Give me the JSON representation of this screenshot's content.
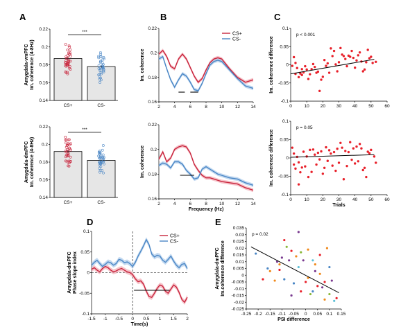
{
  "panel_labels": {
    "A": "A",
    "B": "B",
    "C": "C",
    "D": "D",
    "E": "E"
  },
  "colors": {
    "cs_plus": "#c8243c",
    "cs_minus": "#4a86c5",
    "cs_plus_band": "#f2a9b4",
    "cs_minus_band": "#a9c9ea",
    "bar_fill": "#e6e6e6",
    "scatter": "#e8202a"
  },
  "chart_data": [
    {
      "id": "A1",
      "type": "bar",
      "ylabel_line1": "Amygdala-vmPFC",
      "ylabel_line2": "Im. coherence (4-8Hz)",
      "categories": [
        "CS+",
        "CS-"
      ],
      "values": [
        0.187,
        0.178
      ],
      "sem": [
        0.001,
        0.001
      ],
      "ylim": [
        0.14,
        0.22
      ],
      "yticks": [
        "0.14",
        "0.16",
        "0.18",
        "0.2",
        "0.22"
      ],
      "significance": "***",
      "grid": false
    },
    {
      "id": "A2",
      "type": "bar",
      "ylabel_line1": "Amygdala-dmPFC",
      "ylabel_line2": "Im. coherence (4-8Hz)",
      "categories": [
        "CS+",
        "CS-"
      ],
      "values": [
        0.192,
        0.182
      ],
      "sem": [
        0.0012,
        0.0008
      ],
      "ylim": [
        0.14,
        0.22
      ],
      "yticks": [
        "0.14",
        "0.16",
        "0.18",
        "0.2",
        "0.22"
      ],
      "significance": "***",
      "grid": false
    },
    {
      "id": "B1",
      "type": "line",
      "ylabel": "Im. coherence",
      "legend": [
        "CS+",
        "CS-"
      ],
      "legend_position": "top-right",
      "x": [
        2,
        2.5,
        3,
        3.5,
        4,
        4.5,
        5,
        5.5,
        6,
        6.5,
        7,
        7.5,
        8,
        8.5,
        9,
        9.5,
        10,
        11,
        12,
        13,
        14
      ],
      "series": [
        {
          "name": "CS+",
          "values": [
            0.199,
            0.202,
            0.197,
            0.189,
            0.187,
            0.195,
            0.199,
            0.195,
            0.188,
            0.181,
            0.176,
            0.179,
            0.186,
            0.192,
            0.195,
            0.196,
            0.195,
            0.187,
            0.18,
            0.176,
            0.178
          ]
        },
        {
          "name": "CS-",
          "values": [
            0.195,
            0.197,
            0.187,
            0.178,
            0.172,
            0.178,
            0.183,
            0.181,
            0.176,
            0.17,
            0.169,
            0.175,
            0.183,
            0.19,
            0.193,
            0.194,
            0.193,
            0.186,
            0.179,
            0.173,
            0.171
          ]
        }
      ],
      "xlim": [
        2,
        14
      ],
      "ylim": [
        0.16,
        0.22
      ],
      "xticks": [
        "2",
        "4",
        "6",
        "8",
        "10",
        "12",
        "14"
      ],
      "yticks": [
        "0.16",
        "0.18",
        "0.2",
        "0.22"
      ],
      "sig_bars": [
        [
          4.5,
          5.3
        ],
        [
          6.0,
          7.0
        ]
      ]
    },
    {
      "id": "B2",
      "type": "line",
      "ylabel": "Im. coherence",
      "xlabel": "Frequency (Hz)",
      "x": [
        2,
        2.5,
        3,
        3.5,
        4,
        4.5,
        5,
        5.5,
        6,
        6.5,
        7,
        7.5,
        8,
        8.5,
        9,
        9.5,
        10,
        11,
        12,
        13,
        14
      ],
      "series": [
        {
          "name": "CS+",
          "values": [
            0.192,
            0.198,
            0.19,
            0.193,
            0.2,
            0.202,
            0.203,
            0.202,
            0.197,
            0.188,
            0.183,
            0.179,
            0.177,
            0.177,
            0.176,
            0.175,
            0.174,
            0.173,
            0.172,
            0.169,
            0.167
          ]
        },
        {
          "name": "CS-",
          "values": [
            0.187,
            0.189,
            0.188,
            0.185,
            0.19,
            0.19,
            0.188,
            0.183,
            0.18,
            0.176,
            0.177,
            0.184,
            0.186,
            0.184,
            0.182,
            0.18,
            0.179,
            0.177,
            0.176,
            0.173,
            0.171
          ]
        }
      ],
      "xlim": [
        2,
        14
      ],
      "ylim": [
        0.16,
        0.22
      ],
      "xticks": [
        "2",
        "4",
        "6",
        "8",
        "10",
        "12",
        "14"
      ],
      "yticks": [
        "0.16",
        "0.18",
        "0.2",
        "0.22"
      ],
      "sig_bars": [
        [
          4.7,
          6.5
        ]
      ]
    },
    {
      "id": "C1",
      "type": "scatter",
      "ylabel": "Im. coherence difference",
      "annotation": "p < 0.001",
      "points": [
        [
          1,
          -0.003
        ],
        [
          2,
          0.021
        ],
        [
          3,
          0.005
        ],
        [
          3,
          -0.025
        ],
        [
          4,
          -0.009
        ],
        [
          5,
          -0.034
        ],
        [
          6,
          -0.024
        ],
        [
          7,
          -0.028
        ],
        [
          7,
          -0.012
        ],
        [
          8,
          -0.021
        ],
        [
          9,
          -0.004
        ],
        [
          10,
          -0.013
        ],
        [
          11,
          -0.039
        ],
        [
          12,
          -0.026
        ],
        [
          13,
          -0.012
        ],
        [
          14,
          0.002
        ],
        [
          15,
          -0.006
        ],
        [
          16,
          -0.022
        ],
        [
          17,
          -0.019
        ],
        [
          18,
          -0.072
        ],
        [
          19,
          -0.041
        ],
        [
          20,
          -0.033
        ],
        [
          21,
          0.013
        ],
        [
          22,
          -0.003
        ],
        [
          23,
          0.004
        ],
        [
          24,
          -0.022
        ],
        [
          25,
          0.045
        ],
        [
          26,
          0.024
        ],
        [
          27,
          0.038
        ],
        [
          28,
          0.001
        ],
        [
          29,
          -0.018
        ],
        [
          30,
          0.007
        ],
        [
          31,
          0.046
        ],
        [
          32,
          0.028
        ],
        [
          33,
          0.024
        ],
        [
          34,
          0.016
        ],
        [
          35,
          -0.004
        ],
        [
          36,
          0.025
        ],
        [
          37,
          0.022
        ],
        [
          38,
          0.038
        ],
        [
          39,
          0.019
        ],
        [
          40,
          -0.008
        ],
        [
          41,
          0.012
        ],
        [
          42,
          0.026
        ],
        [
          43,
          0.034
        ],
        [
          44,
          0.009
        ],
        [
          45,
          -0.018
        ],
        [
          46,
          -0.013
        ],
        [
          47,
          0.007
        ],
        [
          48,
          0.041
        ],
        [
          49,
          0.018
        ],
        [
          50,
          0.022
        ],
        [
          51,
          0.005
        ],
        [
          53,
          0.008
        ]
      ],
      "trend": [
        [
          0,
          -0.025
        ],
        [
          52,
          0.015
        ]
      ],
      "xlim": [
        0,
        60
      ],
      "ylim": [
        -0.1,
        0.1
      ],
      "xticks": [
        "0",
        "10",
        "20",
        "30",
        "40",
        "50",
        "60"
      ],
      "yticks": [
        "-0.1",
        "-0.05",
        "0",
        "0.05",
        "0.1"
      ]
    },
    {
      "id": "C2",
      "type": "scatter",
      "ylabel": "Im. coherence difference",
      "xlabel": "Trials",
      "annotation": "p = 0.05",
      "points": [
        [
          1,
          0.028
        ],
        [
          2,
          0.012
        ],
        [
          2,
          -0.018
        ],
        [
          3,
          -0.029
        ],
        [
          4,
          0.003
        ],
        [
          5,
          -0.012
        ],
        [
          5,
          -0.072
        ],
        [
          6,
          -0.039
        ],
        [
          7,
          -0.026
        ],
        [
          8,
          0.017
        ],
        [
          9,
          -0.023
        ],
        [
          10,
          0.004
        ],
        [
          11,
          -0.052
        ],
        [
          12,
          0.022
        ],
        [
          13,
          -0.038
        ],
        [
          14,
          0.023
        ],
        [
          15,
          0.009
        ],
        [
          16,
          -0.018
        ],
        [
          17,
          0.014
        ],
        [
          18,
          -0.004
        ],
        [
          19,
          0.018
        ],
        [
          20,
          -0.043
        ],
        [
          21,
          -0.027
        ],
        [
          22,
          0.029
        ],
        [
          23,
          -0.008
        ],
        [
          24,
          0.021
        ],
        [
          25,
          0.012
        ],
        [
          26,
          -0.021
        ],
        [
          27,
          0.016
        ],
        [
          28,
          -0.035
        ],
        [
          29,
          0.025
        ],
        [
          30,
          -0.013
        ],
        [
          31,
          0.041
        ],
        [
          32,
          0.028
        ],
        [
          33,
          -0.058
        ],
        [
          34,
          0.019
        ],
        [
          35,
          -0.022
        ],
        [
          36,
          0.016
        ],
        [
          37,
          0.043
        ],
        [
          38,
          -0.005
        ],
        [
          39,
          0.026
        ],
        [
          40,
          -0.015
        ],
        [
          41,
          0.031
        ],
        [
          42,
          -0.009
        ],
        [
          43,
          0.038
        ],
        [
          44,
          0.026
        ],
        [
          45,
          -0.033
        ],
        [
          46,
          -0.027
        ],
        [
          47,
          -0.052
        ],
        [
          48,
          0.017
        ],
        [
          49,
          0.013
        ],
        [
          50,
          0.022
        ],
        [
          52,
          0.004
        ],
        [
          53,
          -0.013
        ]
      ],
      "trend": [
        [
          0,
          0.002
        ],
        [
          52,
          0.009
        ]
      ],
      "xlim": [
        0,
        60
      ],
      "ylim": [
        -0.1,
        0.1
      ],
      "xticks": [
        "0",
        "10",
        "20",
        "30",
        "40",
        "50",
        "60"
      ],
      "yticks": [
        "-0.1",
        "-0.05",
        "0",
        "0.05",
        "0.1"
      ]
    },
    {
      "id": "D",
      "type": "line",
      "ylabel_line1": "Amygdala-dmPFC",
      "ylabel_line2": "Phase slope index",
      "xlabel": "Time(s)",
      "legend": [
        "CS+",
        "CS-"
      ],
      "legend_position": "top-right",
      "x": [
        -1.5,
        -1.4,
        -1.3,
        -1.2,
        -1.1,
        -1.0,
        -0.9,
        -0.8,
        -0.7,
        -0.6,
        -0.5,
        -0.4,
        -0.3,
        -0.2,
        -0.1,
        0.0,
        0.1,
        0.2,
        0.3,
        0.4,
        0.5,
        0.6,
        0.7,
        0.8,
        0.9,
        1.0,
        1.1,
        1.2,
        1.3,
        1.4,
        1.5,
        1.6,
        1.7,
        1.8,
        1.9,
        2.0
      ],
      "series": [
        {
          "name": "CS+",
          "values": [
            0.008,
            0.012,
            0.006,
            0.002,
            0.01,
            0.015,
            0.012,
            0.006,
            0.002,
            0.004,
            0.008,
            0.01,
            0.006,
            0.002,
            0.0,
            -0.005,
            -0.015,
            -0.022,
            -0.02,
            -0.028,
            -0.045,
            -0.058,
            -0.06,
            -0.05,
            -0.038,
            -0.03,
            -0.033,
            -0.045,
            -0.05,
            -0.04,
            -0.03,
            -0.035,
            -0.048,
            -0.065,
            -0.072,
            -0.06
          ]
        },
        {
          "name": "CS-",
          "values": [
            0.018,
            0.025,
            0.03,
            0.022,
            0.015,
            0.02,
            0.026,
            0.024,
            0.018,
            0.022,
            0.032,
            0.03,
            0.024,
            0.026,
            0.022,
            0.015,
            0.025,
            0.04,
            0.052,
            0.065,
            0.08,
            0.068,
            0.045,
            0.038,
            0.042,
            0.04,
            0.03,
            0.025,
            0.032,
            0.04,
            0.028,
            0.018,
            0.012,
            0.02,
            0.022,
            0.01
          ]
        }
      ],
      "xlim": [
        -1.5,
        2
      ],
      "ylim": [
        -0.1,
        0.1
      ],
      "xticks": [
        "-1.5",
        "-1",
        "-0.5",
        "0",
        "0.5",
        "1",
        "1.5",
        "2"
      ],
      "yticks": [
        "-0.1",
        "-0.05",
        "0",
        "0.05",
        "0.1"
      ],
      "sig_bars": [
        [
          0.05,
          1.35
        ]
      ]
    },
    {
      "id": "E",
      "type": "scatter",
      "ylabel_line1": "Amygdala-dmPFC",
      "ylabel_line2": "Im.coherence difference",
      "xlabel": "PSI difference",
      "annotation": "p = 0.02",
      "points": [
        [
          -0.21,
          0.016,
          "#4a86c5"
        ],
        [
          -0.18,
          -0.003,
          "#e8202a"
        ],
        [
          -0.16,
          0.005,
          "#4a86c5"
        ],
        [
          -0.13,
          -0.004,
          "#f08a1c"
        ],
        [
          -0.12,
          0.01,
          "#7a3a90"
        ],
        [
          -0.11,
          0.008,
          "#f08a1c"
        ],
        [
          -0.1,
          0.013,
          "#7a3a90"
        ],
        [
          -0.09,
          -0.003,
          "#4a86c5"
        ],
        [
          -0.08,
          0.021,
          "#8ab83a"
        ],
        [
          -0.07,
          0.011,
          "#7a3a90"
        ],
        [
          -0.06,
          0.018,
          "#e8202a"
        ],
        [
          -0.05,
          -0.006,
          "#4a86c5"
        ],
        [
          -0.04,
          0.014,
          "#f08a1c"
        ],
        [
          -0.03,
          0.006,
          "#5bbfd6"
        ],
        [
          -0.02,
          0.017,
          "#8ab83a"
        ],
        [
          -0.01,
          0.011,
          "#7a3a90"
        ],
        [
          0.0,
          -0.005,
          "#e8202a"
        ],
        [
          0.01,
          0.019,
          "#f08a1c"
        ],
        [
          0.02,
          -0.014,
          "#8ab83a"
        ],
        [
          0.03,
          -0.012,
          "#4a86c5"
        ],
        [
          0.04,
          0.008,
          "#f08a1c"
        ],
        [
          0.05,
          -0.008,
          "#e8202a"
        ],
        [
          0.06,
          0.015,
          "#e8202a"
        ],
        [
          0.07,
          -0.009,
          "#7a3a90"
        ],
        [
          0.08,
          -0.005,
          "#e8202a"
        ],
        [
          0.09,
          0.02,
          "#f08a1c"
        ],
        [
          0.1,
          -0.014,
          "#8ab83a"
        ],
        [
          0.11,
          -0.004,
          "#7a3a90"
        ],
        [
          0.12,
          -0.019,
          "#5bbfd6"
        ],
        [
          0.13,
          -0.017,
          "#e8202a"
        ],
        [
          -0.06,
          -0.015,
          "#7a3a90"
        ],
        [
          -0.02,
          -0.012,
          "#e8202a"
        ],
        [
          0.04,
          0.003,
          "#7a3a90"
        ],
        [
          -0.15,
          0.003,
          "#f08a1c"
        ],
        [
          0.03,
          0.011,
          "#5bbfd6"
        ],
        [
          -0.09,
          0.026,
          "#e8202a"
        ],
        [
          0.01,
          -0.002,
          "#f08a1c"
        ],
        [
          0.1,
          0.006,
          "#4a86c5"
        ],
        [
          -0.03,
          0.032,
          "#7a3a90"
        ],
        [
          0.08,
          -0.018,
          "#f08a1c"
        ],
        [
          -0.11,
          0.004,
          "#e8202a"
        ],
        [
          0.06,
          0.001,
          "#f08a1c"
        ]
      ],
      "trend": [
        [
          -0.23,
          0.021
        ],
        [
          0.14,
          -0.013
        ]
      ],
      "xlim": [
        -0.25,
        0.15
      ],
      "ylim": [
        -0.025,
        0.035
      ],
      "xticks": [
        "-0.25",
        "-0.2",
        "-0.15",
        "-0.1",
        "-0.05",
        "0",
        "0.05",
        "0.1",
        "0.15"
      ],
      "yticks": [
        "-0.025",
        "-0.02",
        "-0.015",
        "-0.01",
        "-0.005",
        "0",
        "0.005",
        "0.01",
        "0.015",
        "0.02",
        "0.025",
        "0.03",
        "0.035"
      ]
    }
  ]
}
